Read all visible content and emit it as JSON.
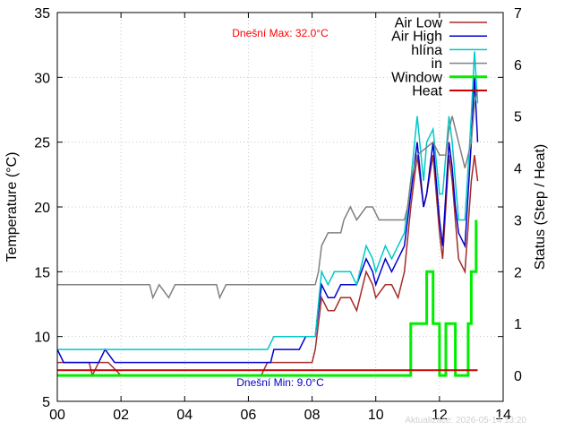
{
  "chart_data": {
    "type": "line",
    "xlabel": "",
    "ylabel_left": "Temperature (°C)",
    "ylabel_right": "Status (Step / Heat)",
    "xlim": [
      0,
      14
    ],
    "ylim_left": [
      5,
      35
    ],
    "ylim_right": [
      -0.5,
      7
    ],
    "x_ticks": [
      0,
      2,
      4,
      6,
      8,
      10,
      12,
      14
    ],
    "x_tick_labels": [
      "00",
      "02",
      "04",
      "06",
      "08",
      "10",
      "12",
      "14"
    ],
    "y_left_ticks": [
      5,
      10,
      15,
      20,
      25,
      30,
      35
    ],
    "y_right_ticks": [
      0,
      1,
      2,
      3,
      4,
      5,
      6,
      7
    ],
    "grid": true,
    "legend_position": "top-right",
    "annotations": {
      "max": "Dnešní Max: 32.0°C",
      "min": "Dnešní Min: 9.0°C",
      "updated": "Aktualizace: 2026-05-14 13:20"
    },
    "series": [
      {
        "name": "Air Low",
        "axis": "left",
        "color": "#a52a2a",
        "width": 1.5,
        "points": [
          [
            0,
            8
          ],
          [
            1,
            8
          ],
          [
            1.1,
            7
          ],
          [
            1.3,
            8
          ],
          [
            1.6,
            8
          ],
          [
            2,
            7
          ],
          [
            6.4,
            7
          ],
          [
            6.6,
            8
          ],
          [
            8,
            8
          ],
          [
            8.1,
            9
          ],
          [
            8.3,
            13
          ],
          [
            8.5,
            12
          ],
          [
            8.7,
            12
          ],
          [
            8.9,
            13
          ],
          [
            9.2,
            13
          ],
          [
            9.4,
            12
          ],
          [
            9.7,
            15
          ],
          [
            9.9,
            14
          ],
          [
            10,
            13
          ],
          [
            10.3,
            14
          ],
          [
            10.5,
            14
          ],
          [
            10.7,
            13
          ],
          [
            10.9,
            15
          ],
          [
            11.1,
            20
          ],
          [
            11.3,
            24
          ],
          [
            11.5,
            20
          ],
          [
            11.6,
            21
          ],
          [
            11.8,
            24
          ],
          [
            12,
            18
          ],
          [
            12.1,
            16
          ],
          [
            12.3,
            24
          ],
          [
            12.4,
            22
          ],
          [
            12.5,
            19
          ],
          [
            12.6,
            16
          ],
          [
            12.8,
            15
          ],
          [
            13,
            22
          ],
          [
            13.1,
            24
          ],
          [
            13.2,
            22
          ]
        ]
      },
      {
        "name": "Air High",
        "axis": "left",
        "color": "#0000cc",
        "width": 1.5,
        "points": [
          [
            0,
            9
          ],
          [
            0.2,
            8
          ],
          [
            1.3,
            8
          ],
          [
            1.5,
            9
          ],
          [
            1.8,
            8
          ],
          [
            6.7,
            8
          ],
          [
            6.8,
            9
          ],
          [
            7.6,
            9
          ],
          [
            7.8,
            10
          ],
          [
            8.1,
            10
          ],
          [
            8.3,
            14
          ],
          [
            8.5,
            13
          ],
          [
            8.7,
            13
          ],
          [
            8.9,
            14
          ],
          [
            9.2,
            14
          ],
          [
            9.4,
            14
          ],
          [
            9.7,
            16
          ],
          [
            9.9,
            15
          ],
          [
            10,
            14
          ],
          [
            10.3,
            16
          ],
          [
            10.5,
            15
          ],
          [
            10.7,
            16
          ],
          [
            10.9,
            17
          ],
          [
            11.1,
            21
          ],
          [
            11.3,
            25
          ],
          [
            11.5,
            20
          ],
          [
            11.6,
            21
          ],
          [
            11.8,
            25
          ],
          [
            12,
            19
          ],
          [
            12.1,
            17
          ],
          [
            12.3,
            25
          ],
          [
            12.4,
            23
          ],
          [
            12.5,
            20
          ],
          [
            12.6,
            18
          ],
          [
            12.8,
            17
          ],
          [
            13,
            25
          ],
          [
            13.1,
            30
          ],
          [
            13.2,
            25
          ]
        ]
      },
      {
        "name": "hlína",
        "axis": "left",
        "color": "#00c8c8",
        "width": 1.5,
        "points": [
          [
            0,
            9
          ],
          [
            6.6,
            9
          ],
          [
            6.8,
            10
          ],
          [
            7.8,
            10
          ],
          [
            8.1,
            10
          ],
          [
            8.3,
            15
          ],
          [
            8.5,
            14
          ],
          [
            8.7,
            15
          ],
          [
            9.2,
            15
          ],
          [
            9.4,
            14
          ],
          [
            9.7,
            17
          ],
          [
            9.9,
            16
          ],
          [
            10,
            15
          ],
          [
            10.3,
            17
          ],
          [
            10.5,
            16
          ],
          [
            10.7,
            17
          ],
          [
            10.9,
            18
          ],
          [
            11.1,
            22
          ],
          [
            11.3,
            27
          ],
          [
            11.5,
            22
          ],
          [
            11.6,
            25
          ],
          [
            11.8,
            26
          ],
          [
            12,
            21
          ],
          [
            12.1,
            21
          ],
          [
            12.3,
            27
          ],
          [
            12.4,
            25
          ],
          [
            12.5,
            22
          ],
          [
            12.6,
            19
          ],
          [
            12.8,
            19
          ],
          [
            13,
            27
          ],
          [
            13.1,
            32
          ],
          [
            13.2,
            28
          ]
        ]
      },
      {
        "name": "in",
        "axis": "left",
        "color": "#808080",
        "width": 1.5,
        "points": [
          [
            0,
            14
          ],
          [
            2.9,
            14
          ],
          [
            3,
            13
          ],
          [
            3.2,
            14
          ],
          [
            3.5,
            13
          ],
          [
            3.7,
            14
          ],
          [
            5,
            14
          ],
          [
            5.1,
            13
          ],
          [
            5.3,
            14
          ],
          [
            8.1,
            14
          ],
          [
            8.2,
            15
          ],
          [
            8.3,
            17
          ],
          [
            8.5,
            18
          ],
          [
            8.9,
            18
          ],
          [
            9,
            19
          ],
          [
            9.2,
            20
          ],
          [
            9.4,
            19
          ],
          [
            9.7,
            20
          ],
          [
            9.9,
            20
          ],
          [
            10.1,
            19
          ],
          [
            10.9,
            19
          ],
          [
            11,
            20
          ],
          [
            11.1,
            22
          ],
          [
            11.3,
            24
          ],
          [
            11.8,
            25
          ],
          [
            12,
            24
          ],
          [
            12.2,
            24
          ],
          [
            12.3,
            26
          ],
          [
            12.4,
            27
          ],
          [
            12.6,
            25
          ],
          [
            12.8,
            23
          ],
          [
            13,
            25
          ],
          [
            13.1,
            28
          ],
          [
            13.2,
            29
          ]
        ]
      },
      {
        "name": "Window",
        "axis": "right",
        "color": "#00ee00",
        "width": 3,
        "points": [
          [
            0,
            0
          ],
          [
            11.1,
            0
          ],
          [
            11.1,
            1
          ],
          [
            11.6,
            1
          ],
          [
            11.6,
            2
          ],
          [
            11.8,
            2
          ],
          [
            11.8,
            1
          ],
          [
            12,
            1
          ],
          [
            12,
            0
          ],
          [
            12.2,
            0
          ],
          [
            12.2,
            1
          ],
          [
            12.5,
            1
          ],
          [
            12.5,
            0
          ],
          [
            12.9,
            0
          ],
          [
            12.9,
            1
          ],
          [
            13,
            1
          ],
          [
            13,
            2
          ],
          [
            13.15,
            2
          ],
          [
            13.15,
            3
          ]
        ]
      },
      {
        "name": "Heat",
        "axis": "right",
        "color": "#cc0000",
        "width": 2,
        "points": [
          [
            0,
            0.1
          ],
          [
            13.2,
            0.1
          ]
        ]
      }
    ]
  }
}
